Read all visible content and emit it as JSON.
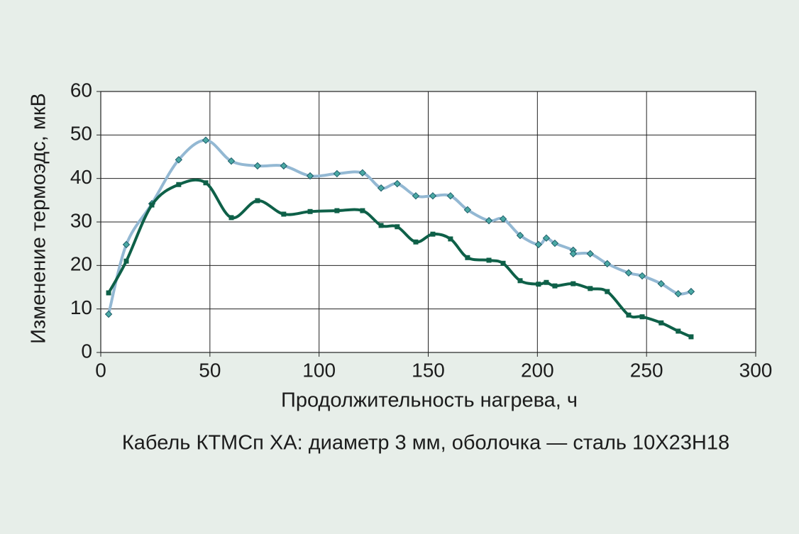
{
  "chart_data": {
    "type": "line",
    "xlabel": "Продолжительность нагрева, ч",
    "ylabel": "Изменение термоэдс, мкВ",
    "caption": "Кабель КТМСп ХА: диаметр 3 мм, оболочка — сталь 10Х23Н18",
    "xlim": [
      0,
      300
    ],
    "ylim": [
      0,
      60
    ],
    "xticks": [
      0,
      50,
      100,
      150,
      200,
      250,
      300
    ],
    "yticks": [
      0,
      10,
      20,
      30,
      40,
      50,
      60
    ],
    "grid": true,
    "series": [
      {
        "color": "#93b8d3",
        "marker": "diamond",
        "marker_color": "#4aa9a4",
        "x": [
          3.6,
          11.7,
          23.4,
          35.7,
          48.1,
          59.8,
          71.8,
          83.8,
          95.9,
          108.2,
          119.9,
          128.4,
          135.8,
          144.3,
          152.1,
          160.2,
          168,
          177.8,
          184.3,
          192.1,
          200.5,
          204.1,
          208,
          216.4,
          216.4,
          224.2,
          232,
          241.8,
          248,
          256.7,
          264.5,
          270.4
        ],
        "values": [
          8.8,
          24.8,
          34.2,
          44.3,
          48.8,
          44,
          42.9,
          42.9,
          40.6,
          41.1,
          41.3,
          37.8,
          38.8,
          36,
          36,
          36,
          32.8,
          30.3,
          30.7,
          26.9,
          24.8,
          26.3,
          25.1,
          23.5,
          22.7,
          22.7,
          20.4,
          18.3,
          17.6,
          15.8,
          13.5,
          14.0
        ]
      },
      {
        "color": "#0e6048",
        "marker": "square",
        "marker_color": "#0e6048",
        "x": [
          3.6,
          11.7,
          23.4,
          35.7,
          48.1,
          59.8,
          71.8,
          83.8,
          95.9,
          108.2,
          119.9,
          128.4,
          135.8,
          144.3,
          152.1,
          160.2,
          168,
          177.8,
          184.3,
          192.1,
          200.5,
          204.1,
          208,
          216.4,
          224.2,
          232,
          241.8,
          248,
          256.7,
          264.5,
          270.4
        ],
        "values": [
          13.7,
          21.0,
          33.9,
          38.6,
          39.0,
          31.0,
          34.9,
          31.8,
          32.4,
          32.6,
          32.6,
          29.2,
          28.9,
          25.4,
          27.2,
          26.1,
          21.8,
          21.2,
          20.5,
          16.5,
          15.7,
          16.1,
          15.3,
          15.8,
          14.7,
          14.0,
          8.6,
          8.2,
          6.8,
          4.9,
          3.6
        ]
      }
    ]
  }
}
